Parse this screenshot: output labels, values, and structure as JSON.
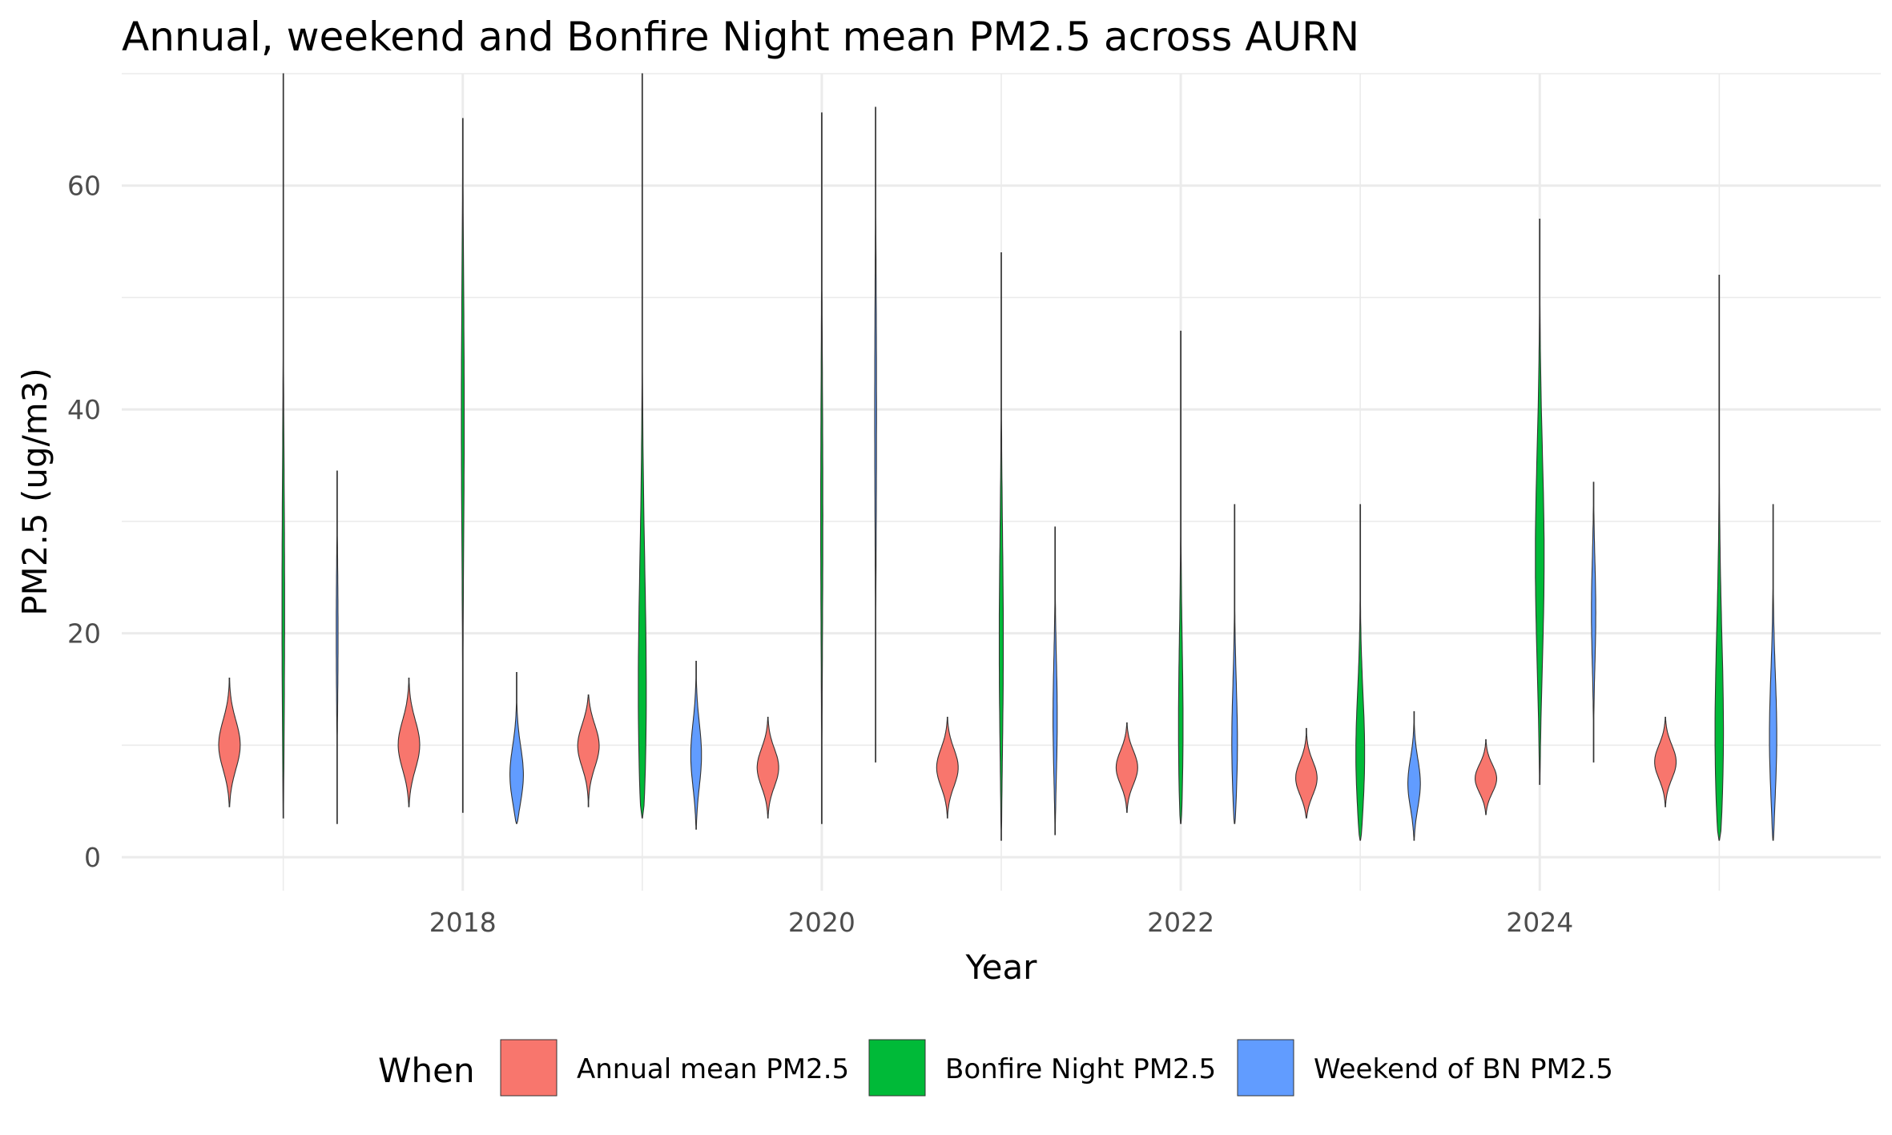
{
  "chart_data": {
    "type": "violin",
    "title": "Annual, weekend and Bonfire Night mean PM2.5 across AURN",
    "xlabel": "Year",
    "ylabel": "PM2.5 (ug/m3)",
    "xlim": [
      2016.1,
      2025.9
    ],
    "ylim": [
      -3,
      70
    ],
    "x_ticks": [
      2018,
      2020,
      2022,
      2024
    ],
    "y_ticks": [
      0,
      20,
      40,
      60
    ],
    "grid": true,
    "legend": {
      "title": "When",
      "position": "bottom",
      "entries": [
        {
          "label": "Annual mean PM2.5",
          "color": "#F8766D"
        },
        {
          "label": "Bonfire Night PM2.5",
          "color": "#00BA38"
        },
        {
          "label": "Weekend of BN PM2.5",
          "color": "#619CFF"
        }
      ]
    },
    "series": [
      {
        "name": "Annual mean PM2.5",
        "color": "#F8766D",
        "offset": -0.3,
        "violins": [
          {
            "year": 2017,
            "min": 4.5,
            "max": 16,
            "mode": 10,
            "width": 0.06
          },
          {
            "year": 2018,
            "min": 4.5,
            "max": 16,
            "mode": 10,
            "width": 0.06
          },
          {
            "year": 2019,
            "min": 4.5,
            "max": 14.5,
            "mode": 10,
            "width": 0.06
          },
          {
            "year": 2020,
            "min": 3.5,
            "max": 12.5,
            "mode": 8,
            "width": 0.06
          },
          {
            "year": 2021,
            "min": 3.5,
            "max": 12.5,
            "mode": 8,
            "width": 0.06
          },
          {
            "year": 2022,
            "min": 4,
            "max": 12,
            "mode": 8,
            "width": 0.06
          },
          {
            "year": 2023,
            "min": 3.5,
            "max": 11.5,
            "mode": 7,
            "width": 0.06
          },
          {
            "year": 2024,
            "min": 3.8,
            "max": 10.5,
            "mode": 7,
            "width": 0.06
          },
          {
            "year": 2025,
            "min": 4.5,
            "max": 12.5,
            "mode": 8.5,
            "width": 0.06
          }
        ]
      },
      {
        "name": "Bonfire Night PM2.5",
        "color": "#00BA38",
        "offset": 0,
        "violins": [
          {
            "year": 2017,
            "min": 3.5,
            "max": 70,
            "mode": 20,
            "width": 0.008
          },
          {
            "year": 2018,
            "min": 4,
            "max": 66,
            "mode": 40,
            "width": 0.008
          },
          {
            "year": 2019,
            "min": 3.5,
            "max": 70,
            "mode": 10,
            "width": 0.03
          },
          {
            "year": 2020,
            "min": 3,
            "max": 66.5,
            "mode": 30,
            "width": 0.006
          },
          {
            "year": 2021,
            "min": 1.5,
            "max": 54,
            "mode": 18,
            "width": 0.012
          },
          {
            "year": 2022,
            "min": 3,
            "max": 47,
            "mode": 9,
            "width": 0.016
          },
          {
            "year": 2023,
            "min": 1.5,
            "max": 31.5,
            "mode": 8,
            "width": 0.028
          },
          {
            "year": 2024,
            "min": 6.5,
            "max": 57,
            "mode": 26,
            "width": 0.025
          },
          {
            "year": 2025,
            "min": 1.5,
            "max": 52,
            "mode": 8,
            "width": 0.03
          }
        ]
      },
      {
        "name": "Weekend of BN PM2.5",
        "color": "#619CFF",
        "offset": 0.3,
        "violins": [
          {
            "year": 2017,
            "min": 3,
            "max": 34.5,
            "mode": 20,
            "width": 0.005
          },
          {
            "year": 2018,
            "min": 3,
            "max": 16.5,
            "mode": 7,
            "width": 0.04
          },
          {
            "year": 2019,
            "min": 2.5,
            "max": 17.5,
            "mode": 9,
            "width": 0.03
          },
          {
            "year": 2020,
            "min": 8.5,
            "max": 67,
            "mode": 40,
            "width": 0.005
          },
          {
            "year": 2021,
            "min": 2,
            "max": 29.5,
            "mode": 12,
            "width": 0.012
          },
          {
            "year": 2022,
            "min": 3,
            "max": 31.5,
            "mode": 9,
            "width": 0.018
          },
          {
            "year": 2023,
            "min": 1.5,
            "max": 13,
            "mode": 6.5,
            "width": 0.035
          },
          {
            "year": 2024,
            "min": 8.5,
            "max": 33.5,
            "mode": 22,
            "width": 0.012
          },
          {
            "year": 2025,
            "min": 1.5,
            "max": 31.5,
            "mode": 10,
            "width": 0.022
          }
        ]
      }
    ]
  }
}
